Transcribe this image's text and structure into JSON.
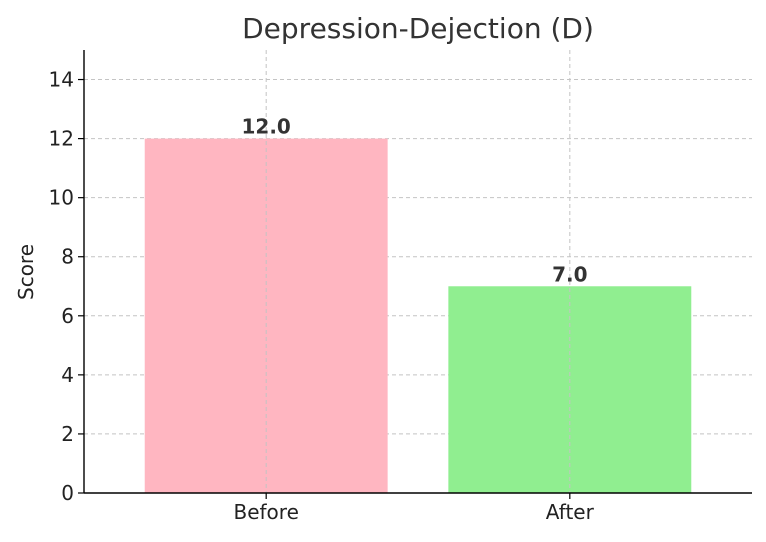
{
  "chart_data": {
    "type": "bar",
    "title": "Depression-Dejection (D)",
    "xlabel": "",
    "ylabel": "Score",
    "categories": [
      "Before",
      "After"
    ],
    "values": [
      12.0,
      7.0
    ],
    "data_labels": [
      "12.0",
      "7.0"
    ],
    "bar_colors": [
      "#ffb6c1",
      "#90ee90"
    ],
    "ylim": [
      0,
      15
    ],
    "yticks": [
      0,
      2,
      4,
      6,
      8,
      10,
      12,
      14
    ],
    "grid": true,
    "legend": "none"
  }
}
